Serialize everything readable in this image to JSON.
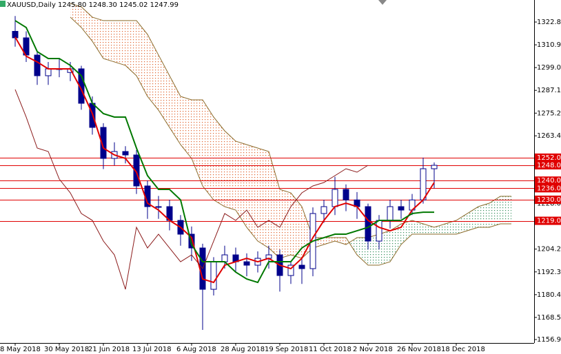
{
  "chart_data": {
    "type": "ichimoku",
    "title": "XAUUSD,Daily 1245.80 1248.30 1245.02 1247.99",
    "categories": [
      "8 May 2018",
      null,
      null,
      null,
      "30 May 2018",
      null,
      null,
      null,
      "21 Jun 2018",
      null,
      null,
      null,
      "13 Jul 2018",
      null,
      null,
      null,
      "6 Aug 2018",
      null,
      null,
      null,
      "28 Aug 2018",
      null,
      null,
      null,
      "19 Sep 2018",
      null,
      null,
      null,
      "11 Oct 2018",
      null,
      null,
      null,
      "2 Nov 2018",
      null,
      null,
      null,
      "26 Nov 2018",
      null,
      null,
      null,
      "18 Dec 2018",
      null,
      null,
      null,
      null,
      null,
      null,
      null
    ],
    "ylim": [
      1155.15,
      1334.37
    ],
    "yticks": [
      1322.85,
      1310.95,
      1299.05,
      1287.15,
      1275.25,
      {
        "value": 1263.4,
        "label": "1263.40"
      },
      {
        "value": 1228,
        "label": "1228.00"
      },
      {
        "value": 1204.2,
        "label": "1204.20"
      },
      {
        "value": 1192.3,
        "label": "1192.30"
      },
      {
        "value": 1180.4,
        "label": "1180.40"
      },
      {
        "value": 1168.5,
        "label": "1168.50"
      },
      1156.95
    ],
    "levels": [
      {
        "value": 1252,
        "label": "1252.00"
      },
      {
        "value": 1248,
        "label": "1248.00"
      },
      {
        "value": 1240,
        "label": "1240.00"
      },
      {
        "value": 1236,
        "label": "1236.00"
      },
      {
        "value": 1230,
        "label": "1230.00"
      },
      {
        "value": 1219,
        "label": "1219.00"
      }
    ],
    "level_color": "#e00000",
    "candles": {
      "color": "#00008b",
      "open": [
        1318,
        1314.6,
        1305.6,
        1294.8,
        1298.4,
        1296.5,
        1298.4,
        1280.4,
        1267.8,
        1251.6,
        1255.2,
        1253.4,
        1237.2,
        1226.4,
        1226.4,
        1219.2,
        1212,
        1204.8,
        1183.2,
        1197.6,
        1201.2,
        1197.6,
        1195.8,
        1199.4,
        1201.2,
        1190.4,
        1195.8,
        1194,
        1222.8,
        1226.4,
        1235.4,
        1229.9,
        1226.4,
        1208.4,
        1219.2,
        1226.4,
        1224.6,
        1229.9,
        1246.2,
        null,
        null,
        null,
        null,
        null,
        null,
        null,
        null,
        null
      ],
      "high": [
        1326,
        1318,
        1308,
        1302,
        1304,
        1302,
        1300,
        1284,
        1270,
        1260,
        1258,
        1256,
        1240,
        1232,
        1230,
        1222,
        1216,
        1207,
        1200,
        1206,
        1205,
        1202,
        1203,
        1206,
        1204,
        1198,
        1200,
        1226,
        1230,
        1242,
        1238,
        1234,
        1228,
        1222,
        1230,
        1230,
        1233,
        1252,
        1249.5,
        null,
        null,
        null,
        null,
        null,
        null,
        null,
        null,
        null
      ],
      "low": [
        1310,
        1302,
        1290,
        1290,
        1294,
        1292,
        1277,
        1264,
        1246,
        1248,
        1249,
        1233,
        1220,
        1220,
        1214,
        1206,
        1198,
        1162,
        1180,
        1194,
        1192,
        1190,
        1192,
        1194,
        1182,
        1186,
        1186,
        1190,
        1218,
        1222,
        1224,
        1220,
        1204,
        1204,
        1215,
        1220,
        1222,
        1228,
        1236,
        null,
        null,
        null,
        null,
        null,
        null,
        null,
        null,
        null
      ],
      "close": [
        1314.6,
        1305.6,
        1294.8,
        1298.4,
        1298.4,
        1298.4,
        1280.4,
        1267.8,
        1251.6,
        1255.2,
        1253.4,
        1237.2,
        1226.4,
        1226.4,
        1219.2,
        1212,
        1204.8,
        1183.2,
        1197.6,
        1201.2,
        1197.6,
        1195.8,
        1199.4,
        1201.2,
        1190.4,
        1195.8,
        1194,
        1222.8,
        1226.4,
        1235.4,
        1229.9,
        1226.4,
        1208.4,
        1219.2,
        1226.4,
        1224.6,
        1229.9,
        1246.2,
        1247.99,
        null,
        null,
        null,
        null,
        null,
        null,
        null,
        null,
        null
      ]
    },
    "cloud": {
      "bull_color": "#2e8b57",
      "bear_color": "#e0602a",
      "edge_color": "#8b6b2a",
      "span_a": [
        null,
        null,
        null,
        null,
        null,
        1325.4,
        1320,
        1312.8,
        1303.8,
        1302,
        1300.2,
        1294.8,
        1284,
        1276.8,
        1267.8,
        1258.8,
        1251.6,
        1237.2,
        1229.9,
        1226.4,
        1224.6,
        1215.6,
        1208.4,
        1204.8,
        1199.4,
        1201.2,
        1199.4,
        1204.8,
        1206.6,
        1208.4,
        1206.6,
        1210.2,
        1210.2,
        1212,
        1213.8,
        1217.4,
        1219.2,
        1217.4,
        1215.6,
        1217.4,
        1219.2,
        1222.8,
        1226.4,
        1228.2,
        1231.8,
        1231.8,
        null,
        null
      ],
      "span_b": [
        null,
        null,
        null,
        null,
        null,
        1332.6,
        1330.8,
        1325.4,
        1323.6,
        1323.6,
        1323.6,
        1323.6,
        1316.4,
        1305.6,
        1294.8,
        1284,
        1282.2,
        1282.2,
        1273.2,
        1266,
        1260.6,
        1258.8,
        1257,
        1255.2,
        1235.4,
        1233.6,
        1226.4,
        1210.2,
        1210.2,
        1210.2,
        1210.2,
        1201.2,
        1195.8,
        1195.8,
        1197.6,
        1206.6,
        1212,
        1212,
        1212,
        1212,
        1212,
        1213.8,
        1215.6,
        1215.6,
        1217.4,
        1217.4,
        null,
        null
      ]
    },
    "lines": [
      {
        "color": "#e00000",
        "width": 2,
        "values": [
          1315,
          1305,
          1302,
          1298.4,
          1298.4,
          1298.4,
          1287.6,
          1275,
          1257,
          1253.4,
          1251.6,
          1244.4,
          1228.2,
          1224.6,
          1219.2,
          1215.6,
          1210.2,
          1188.6,
          1186.8,
          1195.8,
          1197.6,
          1199.4,
          1197.6,
          1199.4,
          1195.8,
          1194,
          1199.4,
          1210.2,
          1219.2,
          1226.4,
          1228.2,
          1226.4,
          1219.2,
          1215.6,
          1213.8,
          1215.6,
          1224.6,
          1229.9,
          1239,
          null,
          null,
          null,
          null,
          null,
          null,
          null,
          null,
          null
        ]
      },
      {
        "color": "#007800",
        "width": 2,
        "values": [
          1323.6,
          1320,
          1307.4,
          1303.8,
          1303.8,
          1300.2,
          1294.8,
          1280.4,
          1275,
          1273.2,
          1273.2,
          1257,
          1242.6,
          1235.4,
          1235.4,
          1229.9,
          1206.6,
          1197.6,
          1197.6,
          1197.6,
          1192.2,
          1188.6,
          1186.8,
          1197.6,
          1197.6,
          1197.6,
          1204.8,
          1208.4,
          1210.2,
          1212,
          1212,
          1213.8,
          1215.6,
          1219.2,
          1219.2,
          1219.2,
          1222.8,
          1223.5,
          1223.5,
          null,
          null,
          null,
          null,
          null,
          null,
          null,
          null,
          null
        ]
      },
      {
        "color": "#8b1a1a",
        "width": 1,
        "values": [
          1287.6,
          1273.2,
          1257,
          1255.2,
          1240.8,
          1233.6,
          1222.8,
          1219.2,
          1208.4,
          1201.2,
          1183.2,
          1215.6,
          1204.8,
          1212,
          1204.8,
          1197.6,
          1201.2,
          1194,
          1208.4,
          1222.8,
          1219.2,
          1224.6,
          1215.6,
          1219.2,
          1215.6,
          1226.4,
          1233.6,
          1237.2,
          1239,
          1242.6,
          1246.2,
          1244.4,
          1248,
          null,
          null,
          null,
          null,
          null,
          null,
          null,
          null,
          null,
          null,
          null,
          null,
          null,
          null,
          null
        ]
      }
    ]
  }
}
